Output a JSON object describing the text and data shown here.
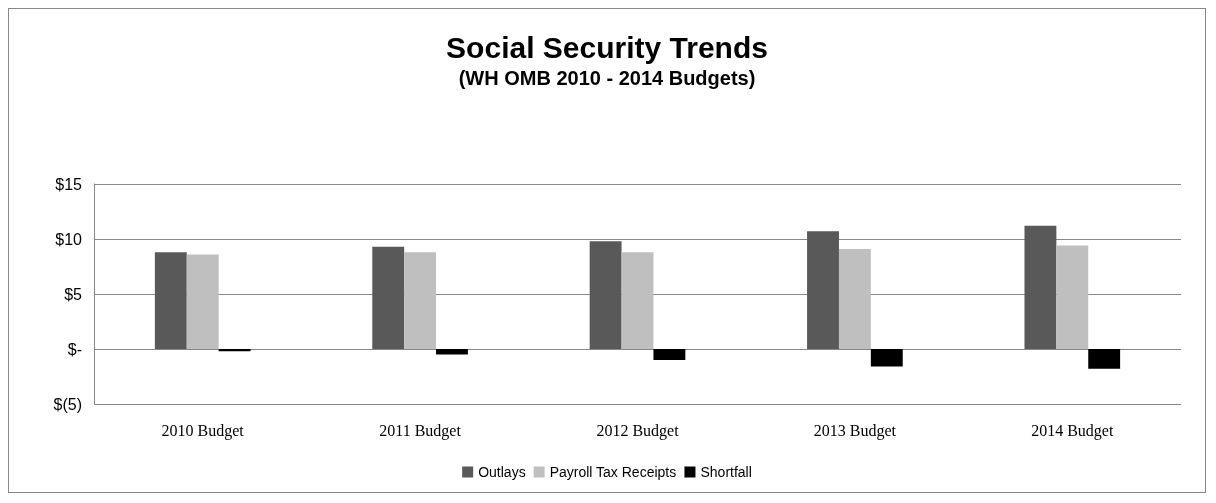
{
  "chart_data": {
    "type": "bar",
    "title": "Social Security Trends",
    "subtitle": "(WH OMB 2010 - 2014 Budgets)",
    "categories": [
      "2010 Budget",
      "2011 Budget",
      "2012 Budget",
      "2013 Budget",
      "2014 Budget"
    ],
    "series": [
      {
        "name": "Outlays",
        "color": "#595959",
        "values": [
          8.8,
          9.3,
          9.8,
          10.7,
          11.2
        ]
      },
      {
        "name": "Payroll Tax Receipts",
        "color": "#bfbfbf",
        "values": [
          8.6,
          8.8,
          8.8,
          9.1,
          9.4
        ]
      },
      {
        "name": "Shortfall",
        "color": "#000000",
        "values": [
          -0.2,
          -0.5,
          -1.0,
          -1.6,
          -1.8
        ]
      }
    ],
    "ylim": [
      -5,
      15
    ],
    "yticks": [
      {
        "value": -5,
        "label": "$(5)"
      },
      {
        "value": 0,
        "label": "$-"
      },
      {
        "value": 5,
        "label": "$5"
      },
      {
        "value": 10,
        "label": "$10"
      },
      {
        "value": 15,
        "label": "$15"
      }
    ],
    "grid": "y",
    "legend": "bottom"
  }
}
